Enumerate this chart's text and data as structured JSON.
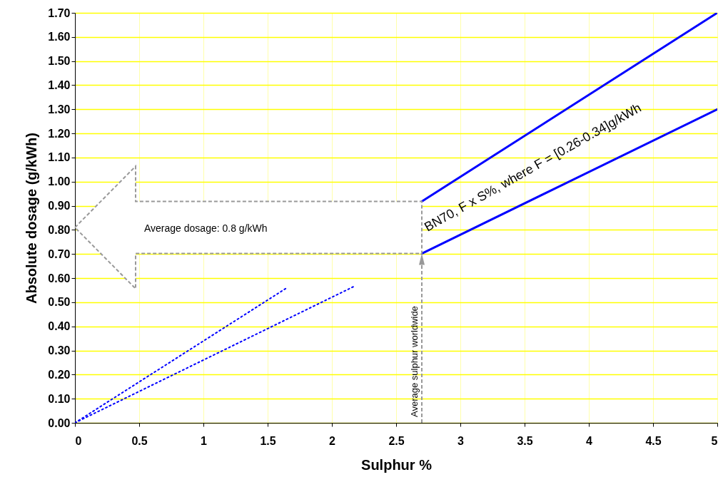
{
  "chart_data": {
    "type": "line",
    "xlabel": "Sulphur %",
    "ylabel": "Absolute dosage (g/kWh)",
    "xlim": [
      0,
      5
    ],
    "xticks": [
      0,
      0.5,
      1,
      1.5,
      2,
      2.5,
      3,
      3.5,
      4,
      4.5,
      5
    ],
    "ylim": [
      0,
      1.7
    ],
    "yticks": [
      {
        "value": 0,
        "label": "0.00"
      },
      {
        "value": 0.1,
        "label": "0.10"
      },
      {
        "value": 0.2,
        "label": "0.20"
      },
      {
        "value": 0.3,
        "label": "0.30"
      },
      {
        "value": 0.4,
        "label": "0.40"
      },
      {
        "value": 0.5,
        "label": "0.50"
      },
      {
        "value": 0.6,
        "label": "0.60"
      },
      {
        "value": 0.7,
        "label": "0.70"
      },
      {
        "value": 0.8,
        "label": "0.80"
      },
      {
        "value": 0.9,
        "label": "0.90"
      },
      {
        "value": 1,
        "label": "1.00"
      },
      {
        "value": 1.1,
        "label": "1.10"
      },
      {
        "value": 1.2,
        "label": "1.20"
      },
      {
        "value": 1.3,
        "label": "1.30"
      },
      {
        "value": 1.4,
        "label": "1.40"
      },
      {
        "value": 1.5,
        "label": "1.50"
      },
      {
        "value": 1.6,
        "label": "1.60"
      },
      {
        "value": 1.7,
        "label": "1.70"
      }
    ],
    "grid": true,
    "series": [
      {
        "color": "#0000ff",
        "line_style": "solid",
        "x": [
          2.7,
          5
        ],
        "values": [
          0.918,
          1.7
        ]
      },
      {
        "color": "#0000ff",
        "line_style": "solid",
        "x": [
          2.7,
          5
        ],
        "values": [
          0.702,
          1.3
        ]
      },
      {
        "color": "#0000ff",
        "line_style": "dotted",
        "x": [
          0,
          1.65
        ],
        "values": [
          0,
          0.56
        ]
      },
      {
        "color": "#0000ff",
        "line_style": "dotted",
        "x": [
          0,
          2.17
        ],
        "values": [
          0,
          0.565
        ]
      }
    ],
    "annotations": [
      "Average dosage: 0.8 g/kWh",
      {
        "text": "Average sulphur worldwide",
        "x": 2.7,
        "y": 0.702
      },
      "BN70, F x S%, where F = [0.26-0.34]g/kWh"
    ]
  }
}
